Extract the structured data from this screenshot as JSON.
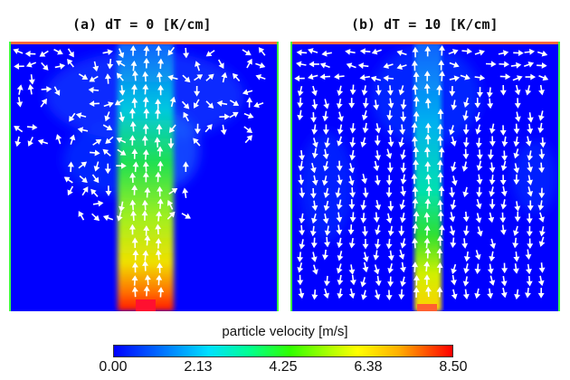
{
  "panels": [
    {
      "title": "(a) dT = 0 [K/cm]"
    },
    {
      "title": "(b) dT = 10 [K/cm]"
    }
  ],
  "colorbar": {
    "label": "particle velocity [m/s]",
    "ticks": [
      "0.00",
      "2.13",
      "4.25",
      "6.38",
      "8.50"
    ],
    "colors": [
      "#0000ff",
      "#00e0ff",
      "#30ff00",
      "#ffff00",
      "#ff0000"
    ]
  }
}
